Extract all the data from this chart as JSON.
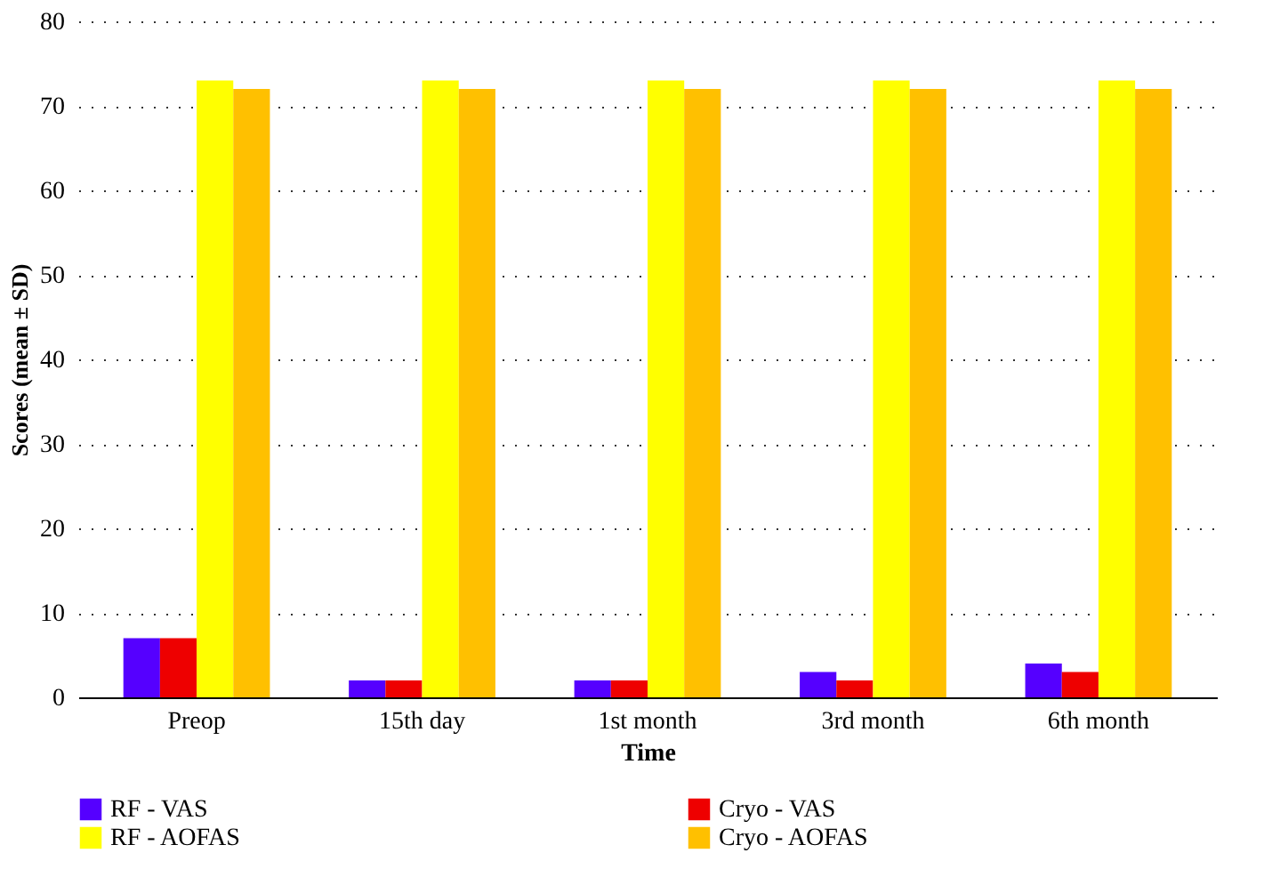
{
  "chart_data": {
    "type": "bar",
    "xlabel": "Time",
    "ylabel": "Scores (mean ± SD)",
    "categories": [
      "Preop",
      "15th day",
      "1st month",
      "3rd month",
      "6th month"
    ],
    "series": [
      {
        "name": "RF - VAS",
        "color": "#5500ff",
        "values": [
          7,
          2,
          2,
          3,
          4
        ]
      },
      {
        "name": "Cryo - VAS",
        "color": "#ee0000",
        "values": [
          7,
          2,
          2,
          2,
          3
        ]
      },
      {
        "name": "RF - AOFAS",
        "color": "#ffff00",
        "values": [
          73,
          73,
          73,
          73,
          73
        ]
      },
      {
        "name": "Cryo - AOFAS",
        "color": "#ffc000",
        "values": [
          72,
          72,
          72,
          72,
          72
        ]
      }
    ],
    "ylim": [
      0,
      80
    ],
    "yticks": [
      0,
      10,
      20,
      30,
      40,
      50,
      60,
      70,
      80
    ],
    "grid": "y",
    "legend": "bottom"
  }
}
